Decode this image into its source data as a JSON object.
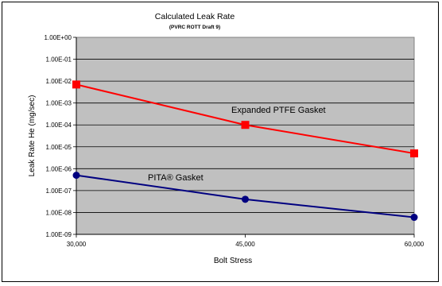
{
  "chart_data": {
    "type": "line",
    "title": "Calculated Leak Rate",
    "subtitle": "(PVRC ROTT Draft 9)",
    "xlabel": "Bolt Stress",
    "ylabel": "Leak Rate He (mg/sec)",
    "y_scale": "log",
    "ylim": [
      1e-09,
      1
    ],
    "xlim": [
      30000,
      60000
    ],
    "x": [
      30000,
      45000,
      60000
    ],
    "x_tick_labels": [
      "30,000",
      "45,000",
      "60,000"
    ],
    "y_tick_labels": [
      "1.00E+00",
      "1.00E-01",
      "1.00E-02",
      "1.00E-03",
      "1.00E-04",
      "1.00E-05",
      "1.00E-06",
      "1.00E-07",
      "1.00E-08",
      "1.00E-09"
    ],
    "grid": true,
    "plot_background": "#c0c0c0",
    "series": [
      {
        "annotation": "Expanded PTFE Gasket",
        "color": "#ff0000",
        "marker": "square",
        "values": [
          0.007,
          0.0001,
          5e-06
        ]
      },
      {
        "annotation": "PITA® Gasket",
        "color": "#000080",
        "marker": "circle",
        "values": [
          5e-07,
          4e-08,
          6e-09
        ]
      }
    ]
  }
}
